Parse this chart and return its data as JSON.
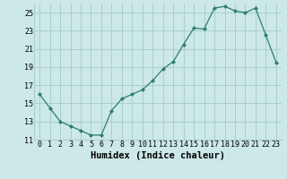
{
  "x": [
    0,
    1,
    2,
    3,
    4,
    5,
    6,
    7,
    8,
    9,
    10,
    11,
    12,
    13,
    14,
    15,
    16,
    17,
    18,
    19,
    20,
    21,
    22,
    23
  ],
  "y": [
    16,
    14.5,
    13,
    12.5,
    12,
    11.5,
    11.5,
    14.2,
    15.5,
    16,
    16.5,
    17.5,
    18.8,
    19.6,
    21.5,
    23.3,
    23.2,
    25.5,
    25.7,
    25.2,
    25.0,
    25.5,
    22.5,
    19.5
  ],
  "line_color": "#2e7d6e",
  "marker": "D",
  "marker_size": 2.0,
  "bg_color": "#cce8e8",
  "grid_color": "#aacece",
  "xlabel": "Humidex (Indice chaleur)",
  "ylabel": "",
  "xlim": [
    -0.5,
    23.5
  ],
  "ylim": [
    11,
    26
  ],
  "yticks": [
    11,
    13,
    15,
    17,
    19,
    21,
    23,
    25
  ],
  "xticks": [
    0,
    1,
    2,
    3,
    4,
    5,
    6,
    7,
    8,
    9,
    10,
    11,
    12,
    13,
    14,
    15,
    16,
    17,
    18,
    19,
    20,
    21,
    22,
    23
  ],
  "xtick_labels": [
    "0",
    "1",
    "2",
    "3",
    "4",
    "5",
    "6",
    "7",
    "8",
    "9",
    "10",
    "11",
    "12",
    "13",
    "14",
    "15",
    "16",
    "17",
    "18",
    "19",
    "20",
    "21",
    "22",
    "23"
  ],
  "label_fontsize": 7.5,
  "tick_fontsize": 6.0
}
